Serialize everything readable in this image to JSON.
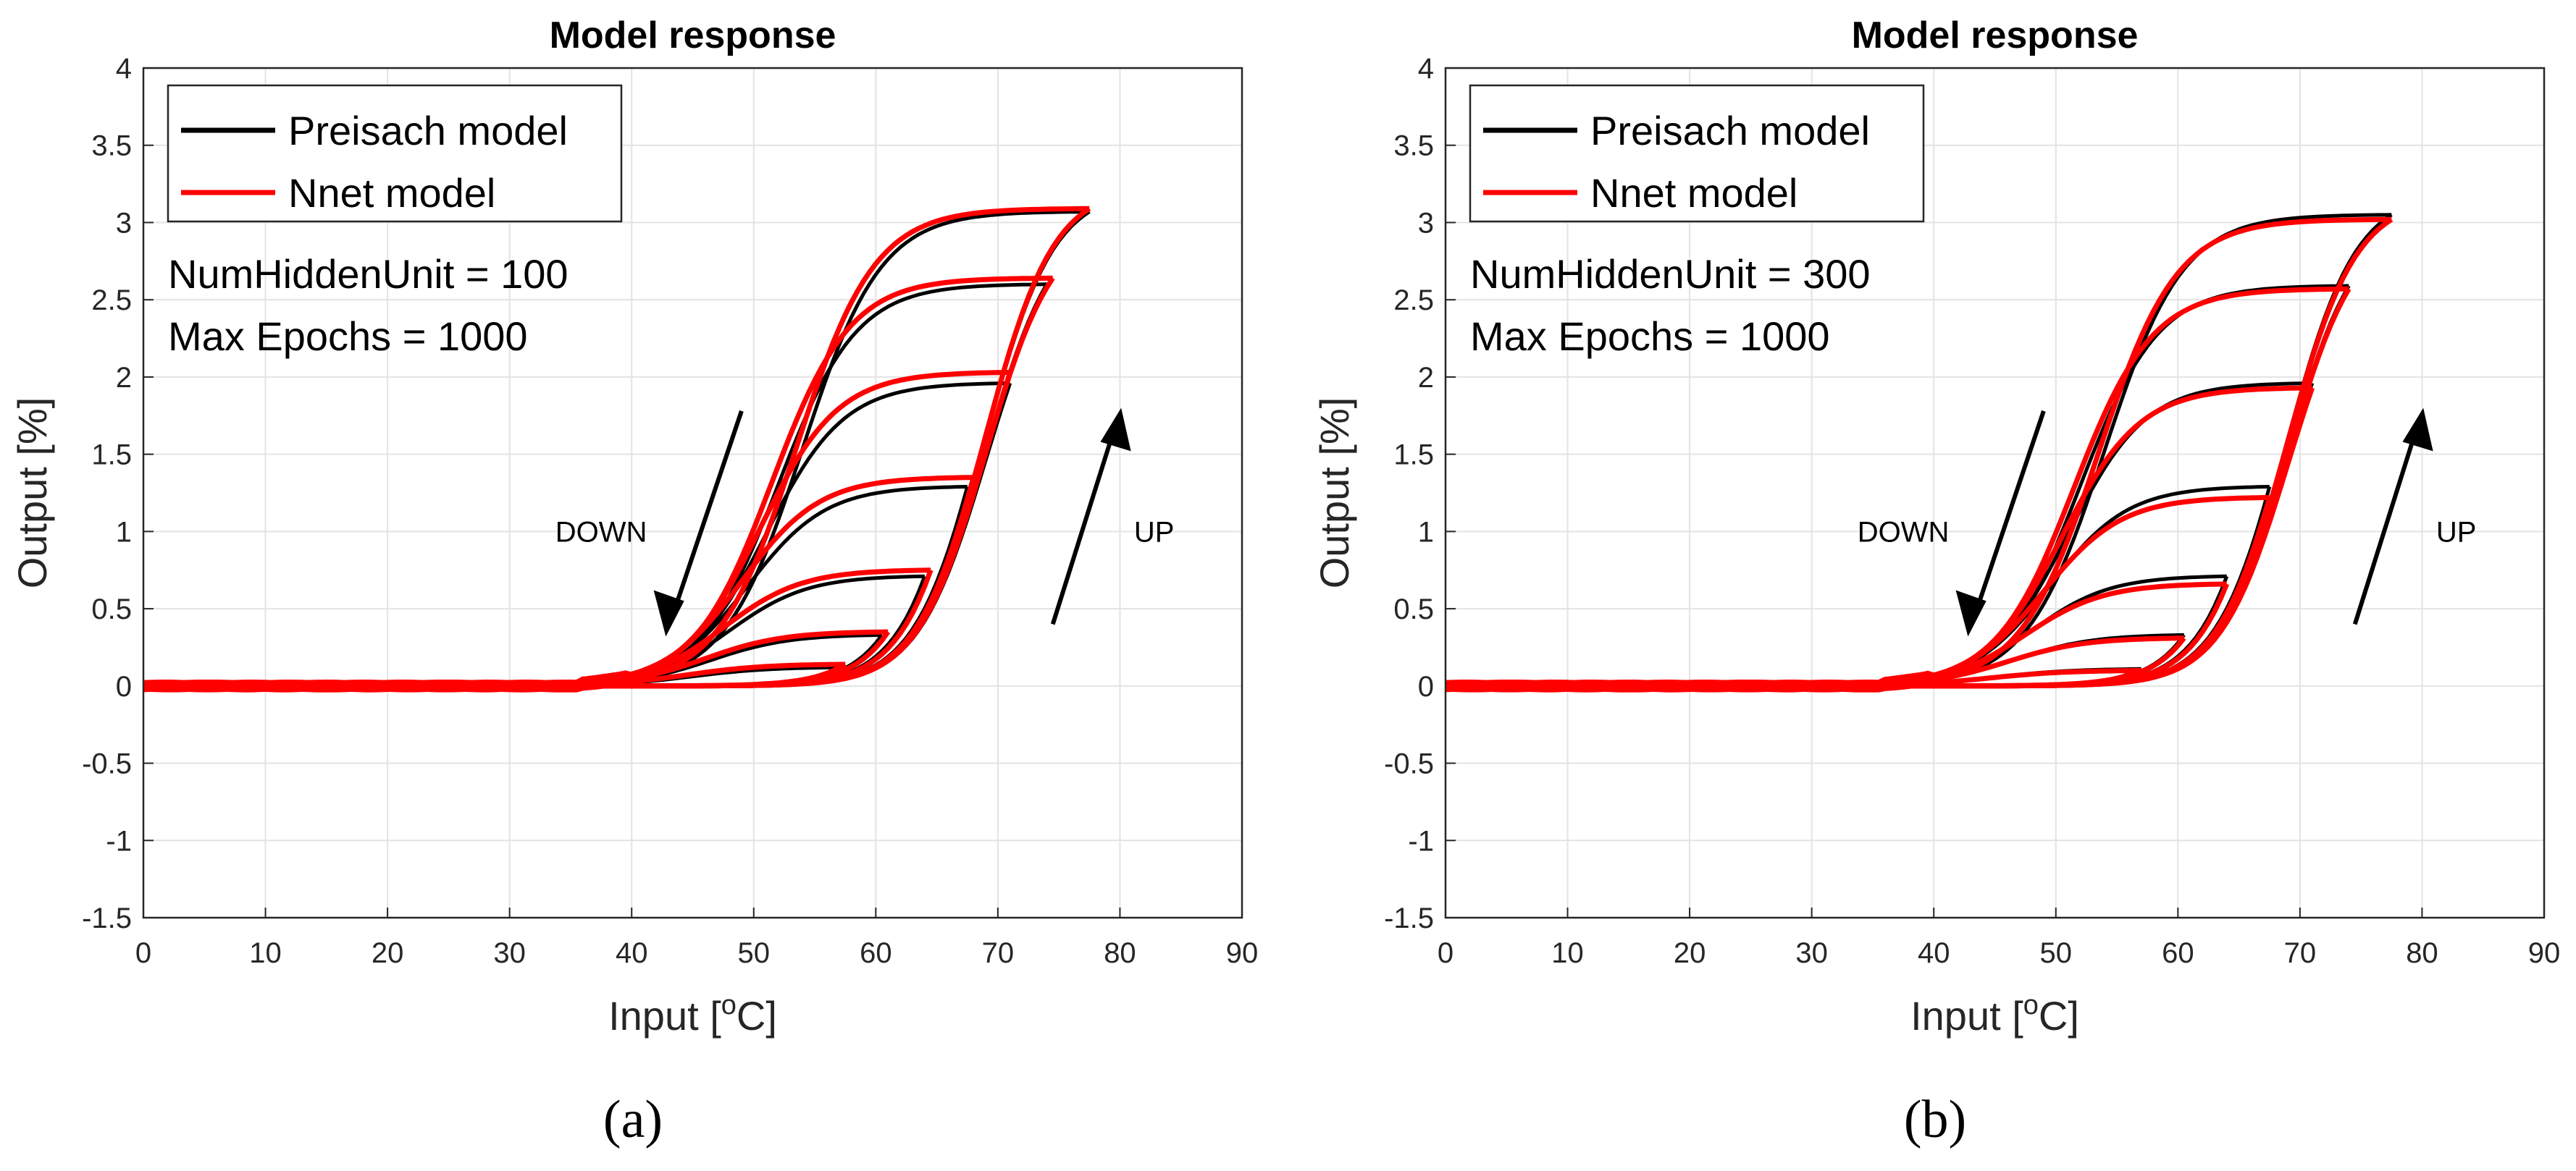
{
  "chart_data": [
    {
      "type": "line",
      "panel_label": "(a)",
      "title": "Model response",
      "xlabel": "Input [",
      "xlabel_sup": "o",
      "xlabel_end": "C]",
      "ylabel": "Output [%]",
      "xlim": [
        0,
        90
      ],
      "ylim": [
        -1.5,
        4
      ],
      "xticks": [
        "0",
        "10",
        "20",
        "30",
        "40",
        "50",
        "60",
        "70",
        "80",
        "90"
      ],
      "yticks": [
        "-1.5",
        "-1",
        "-0.5",
        "0",
        "0.5",
        "1",
        "1.5",
        "2",
        "2.5",
        "3",
        "3.5",
        "4"
      ],
      "grid": true,
      "legend": [
        "Preisach model",
        "Nnet model"
      ],
      "legend_position": "top-left",
      "annotations": [
        "NumHiddenUnit = 100",
        "Max Epochs = 1000"
      ],
      "arrow_labels": {
        "down": "DOWN",
        "up": "UP"
      },
      "series": [
        {
          "name": "Preisach model",
          "color": "#000000",
          "loops": [
            {
              "peak": 77.5,
              "ymax": 3.07,
              "fall": 54
            },
            {
              "peak": 74.0,
              "ymax": 2.6,
              "fall": 52
            },
            {
              "peak": 71.0,
              "ymax": 1.96,
              "fall": 51
            },
            {
              "peak": 67.5,
              "ymax": 1.29,
              "fall": 49.5
            },
            {
              "peak": 64.0,
              "ymax": 0.71,
              "fall": 48
            },
            {
              "peak": 60.5,
              "ymax": 0.33,
              "fall": 46.5
            },
            {
              "peak": 57.0,
              "ymax": 0.12,
              "fall": 45
            }
          ]
        },
        {
          "name": "Nnet model",
          "color": "#ff0000",
          "loops": [
            {
              "peak": 77.5,
              "ymax": 3.09,
              "fall": 53.5
            },
            {
              "peak": 74.5,
              "ymax": 2.64,
              "fall": 51.5
            },
            {
              "peak": 71.0,
              "ymax": 2.03,
              "fall": 50.5
            },
            {
              "peak": 68.0,
              "ymax": 1.35,
              "fall": 49
            },
            {
              "peak": 64.5,
              "ymax": 0.75,
              "fall": 47.5
            },
            {
              "peak": 61.0,
              "ymax": 0.35,
              "fall": 46
            },
            {
              "peak": 57.5,
              "ymax": 0.14,
              "fall": 44.5
            }
          ]
        }
      ]
    },
    {
      "type": "line",
      "panel_label": "(b)",
      "title": "Model response",
      "xlabel": "Input [",
      "xlabel_sup": "o",
      "xlabel_end": "C]",
      "ylabel": "Output [%]",
      "xlim": [
        0,
        90
      ],
      "ylim": [
        -1.5,
        4
      ],
      "xticks": [
        "0",
        "10",
        "20",
        "30",
        "40",
        "50",
        "60",
        "70",
        "80",
        "90"
      ],
      "yticks": [
        "-1.5",
        "-1",
        "-0.5",
        "0",
        "0.5",
        "1",
        "1.5",
        "2",
        "2.5",
        "3",
        "3.5",
        "4"
      ],
      "grid": true,
      "legend": [
        "Preisach model",
        "Nnet model"
      ],
      "legend_position": "top-left",
      "annotations": [
        "NumHiddenUnit = 300",
        "Max Epochs = 1000"
      ],
      "arrow_labels": {
        "down": "DOWN",
        "up": "UP"
      },
      "series": [
        {
          "name": "Preisach model",
          "color": "#000000",
          "loops": [
            {
              "peak": 77.5,
              "ymax": 3.05,
              "fall": 54
            },
            {
              "peak": 74.0,
              "ymax": 2.59,
              "fall": 52
            },
            {
              "peak": 71.0,
              "ymax": 1.96,
              "fall": 51
            },
            {
              "peak": 67.5,
              "ymax": 1.29,
              "fall": 49.5
            },
            {
              "peak": 64.0,
              "ymax": 0.71,
              "fall": 48
            },
            {
              "peak": 60.5,
              "ymax": 0.33,
              "fall": 46.5
            },
            {
              "peak": 57.0,
              "ymax": 0.11,
              "fall": 45
            }
          ]
        },
        {
          "name": "Nnet model",
          "color": "#ff0000",
          "loops": [
            {
              "peak": 77.5,
              "ymax": 3.02,
              "fall": 53.5
            },
            {
              "peak": 74.0,
              "ymax": 2.57,
              "fall": 51.5
            },
            {
              "peak": 71.0,
              "ymax": 1.93,
              "fall": 50.5
            },
            {
              "peak": 67.5,
              "ymax": 1.22,
              "fall": 49
            },
            {
              "peak": 64.0,
              "ymax": 0.66,
              "fall": 47.5
            },
            {
              "peak": 60.5,
              "ymax": 0.31,
              "fall": 46
            },
            {
              "peak": 57.0,
              "ymax": 0.1,
              "fall": 44.5
            }
          ]
        }
      ]
    }
  ]
}
